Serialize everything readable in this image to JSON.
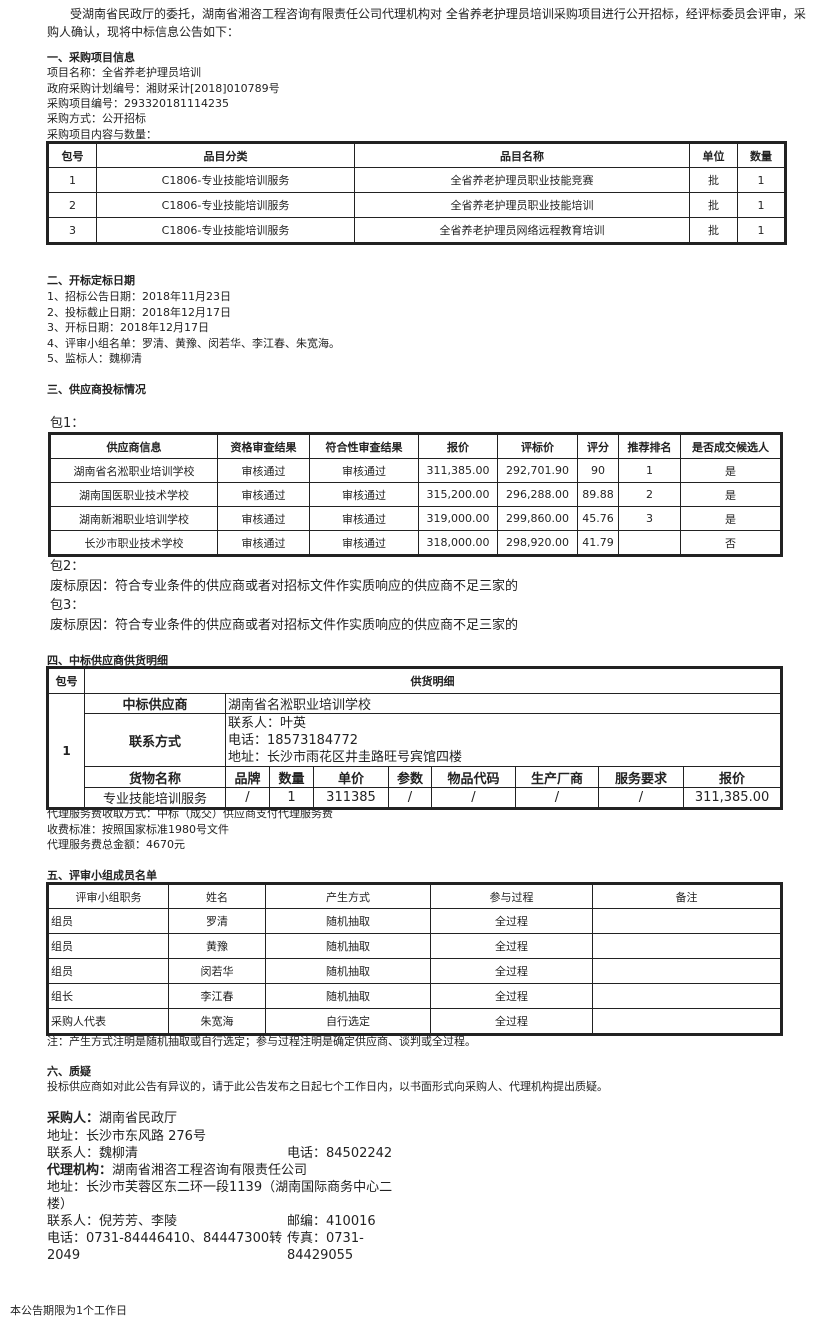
{
  "intro": {
    "line1": "受湖南省民政厅的委托，湖南省湘咨工程咨询有限责任公司代理机构对 全省养老护理员培训采购项目进行公开招标，经评标委员会评审，采",
    "line2": "购人确认，现将中标信息公告如下："
  },
  "section1": {
    "heading": "一、采购项目信息",
    "lines": [
      "项目名称：全省养老护理员培训",
      "政府采购计划编号：湘财采计[2018]010789号",
      "采购项目编号：293320181114235",
      "采购方式：公开招标",
      "采购项目内容与数量："
    ],
    "table": {
      "headers": [
        "包号",
        "品目分类",
        "品目名称",
        "单位",
        "数量"
      ],
      "rows": [
        [
          "1",
          "C1806-专业技能培训服务",
          "全省养老护理员职业技能竞赛",
          "批",
          "1"
        ],
        [
          "2",
          "C1806-专业技能培训服务",
          "全省养老护理员职业技能培训",
          "批",
          "1"
        ],
        [
          "3",
          "C1806-专业技能培训服务",
          "全省养老护理员网络远程教育培训",
          "批",
          "1"
        ]
      ]
    }
  },
  "section2": {
    "heading": "二、开标定标日期",
    "lines": [
      "1、招标公告日期：2018年11月23日",
      "2、投标截止日期：2018年12月17日",
      "3、开标日期：2018年12月17日",
      "4、评审小组名单：罗清、黄豫、闵若华、李江春、朱宽海。",
      "5、监标人：魏柳清"
    ]
  },
  "section3": {
    "heading": "三、供应商投标情况",
    "pkg1": "包1：",
    "table": {
      "headers": [
        "供应商信息",
        "资格审查结果",
        "符合性审查结果",
        "报价",
        "评标价",
        "评分",
        "推荐排名",
        "是否成交候选人"
      ],
      "rows": [
        [
          "湖南省名淞职业培训学校",
          "审核通过",
          "审核通过",
          "311,385.00",
          "292,701.90",
          "90",
          "1",
          "是"
        ],
        [
          "湖南国医职业技术学校",
          "审核通过",
          "审核通过",
          "315,200.00",
          "296,288.00",
          "89.88",
          "2",
          "是"
        ],
        [
          "湖南新湘职业培训学校",
          "审核通过",
          "审核通过",
          "319,000.00",
          "299,860.00",
          "45.76",
          "3",
          "是"
        ],
        [
          "长沙市职业技术学校",
          "审核通过",
          "审核通过",
          "318,000.00",
          "298,920.00",
          "41.79",
          "",
          "否"
        ]
      ]
    },
    "pkg2": "包2：",
    "pkg2_reason": "废标原因：符合专业条件的供应商或者对招标文件作实质响应的供应商不足三家的",
    "pkg3": "包3：",
    "pkg3_reason": "废标原因：符合专业条件的供应商或者对招标文件作实质响应的供应商不足三家的"
  },
  "section4": {
    "heading": "四、中标供应商供货明细",
    "h_pkg": "包号",
    "h_detail": "供货明细",
    "pkg": "1",
    "winner_label": "中标供应商",
    "winner": "湖南省名淞职业培训学校",
    "contact_label": "联系方式",
    "contact_person": "联系人：叶英",
    "contact_phone": "电话：18573184772",
    "contact_addr": "地址：长沙市雨花区井圭路旺号宾馆四楼",
    "goods_headers": [
      "货物名称",
      "品牌",
      "数量",
      "单价",
      "参数",
      "物品代码",
      "生产厂商",
      "服务要求",
      "报价"
    ],
    "goods_row": [
      "专业技能培训服务",
      "/",
      "1",
      "311385",
      "/",
      "/",
      "/",
      "/",
      "311,385.00"
    ],
    "notes": [
      "代理服务费收取方式：中标（成交）供应商支付代理服务费",
      "收费标准：按照国家标准1980号文件",
      "代理服务费总金额：4670元"
    ]
  },
  "section5": {
    "heading": "五、评审小组成员名单",
    "headers": [
      "评审小组职务",
      "姓名",
      "产生方式",
      "参与过程",
      "备注"
    ],
    "rows": [
      [
        "组员",
        "罗清",
        "随机抽取",
        "全过程",
        ""
      ],
      [
        "组员",
        "黄豫",
        "随机抽取",
        "全过程",
        ""
      ],
      [
        "组员",
        "闵若华",
        "随机抽取",
        "全过程",
        ""
      ],
      [
        "组长",
        "李江春",
        "随机抽取",
        "全过程",
        ""
      ],
      [
        "采购人代表",
        "朱宽海",
        "自行选定",
        "全过程",
        ""
      ]
    ],
    "note": "注：产生方式注明是随机抽取或自行选定；参与过程注明是确定供应商、谈判或全过程。"
  },
  "section6": {
    "heading": "六、质疑",
    "text": "投标供应商如对此公告有异议的，请于此公告发布之日起七个工作日内，以书面形式向采购人、代理机构提出质疑。"
  },
  "contacts": {
    "buyer_label": "采购人：",
    "buyer": "湖南省民政厅",
    "buyer_addr": "地址：长沙市东风路 276号",
    "buyer_person": "联系人：魏柳清",
    "buyer_phone": "电话：84502242",
    "agent_label": "代理机构：",
    "agent": "湖南省湘咨工程咨询有限责任公司",
    "agent_addr1": "地址：长沙市芙蓉区东二环一段1139（湖南国际商务中心二",
    "agent_addr2": "楼）",
    "agent_person": "联系人：倪芳芳、李陵",
    "agent_zip": "邮编：410016",
    "agent_phone1": "电话：0731-84446410、84447300转",
    "agent_phone2": "2049",
    "agent_fax1": "传真：0731-",
    "agent_fax2": "84429055"
  },
  "footer": "本公告期限为1个工作日"
}
